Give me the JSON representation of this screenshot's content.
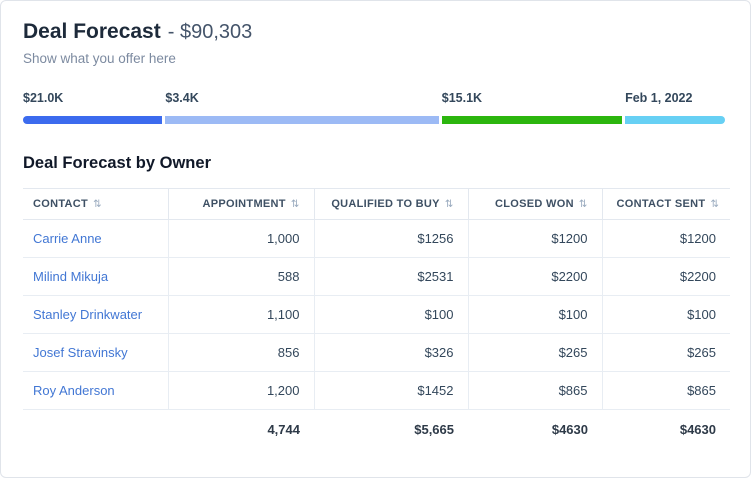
{
  "header": {
    "title": "Deal Forecast",
    "amount": "- $90,303",
    "subtitle": "Show what you offer here"
  },
  "progress": {
    "segments": [
      {
        "label": "$21.0K",
        "color": "#3c6bee",
        "percent": 20.2
      },
      {
        "label": "$3.4K",
        "color": "#9cbaf5",
        "percent": 39.2
      },
      {
        "label": "$15.1K",
        "color": "#2cb60e",
        "percent": 26.0
      },
      {
        "label": "Feb 1, 2022",
        "color": "#67d0f4",
        "percent": 14.6
      }
    ]
  },
  "icons": {
    "sort": "⇅"
  },
  "table": {
    "title": "Deal Forecast by Owner",
    "columns": [
      "CONTACT",
      "APPOINTMENT",
      "QUALIFIED TO BUY",
      "CLOSED WON",
      "CONTACT SENT"
    ],
    "rows": [
      {
        "contact": "Carrie Anne",
        "appointment": "1,000",
        "qualified_to_buy": "$1256",
        "closed_won": "$1200",
        "contact_sent": "$1200"
      },
      {
        "contact": "Milind Mikuja",
        "appointment": "588",
        "qualified_to_buy": "$2531",
        "closed_won": "$2200",
        "contact_sent": "$2200"
      },
      {
        "contact": "Stanley Drinkwater",
        "appointment": "1,100",
        "qualified_to_buy": "$100",
        "closed_won": "$100",
        "contact_sent": "$100"
      },
      {
        "contact": "Josef Stravinsky",
        "appointment": "856",
        "qualified_to_buy": "$326",
        "closed_won": "$265",
        "contact_sent": "$265"
      },
      {
        "contact": "Roy Anderson",
        "appointment": "1,200",
        "qualified_to_buy": "$1452",
        "closed_won": "$865",
        "contact_sent": "$865"
      }
    ],
    "totals": {
      "appointment": "4,744",
      "qualified_to_buy": "$5,665",
      "closed_won": "$4630",
      "contact_sent": "$4630"
    }
  }
}
